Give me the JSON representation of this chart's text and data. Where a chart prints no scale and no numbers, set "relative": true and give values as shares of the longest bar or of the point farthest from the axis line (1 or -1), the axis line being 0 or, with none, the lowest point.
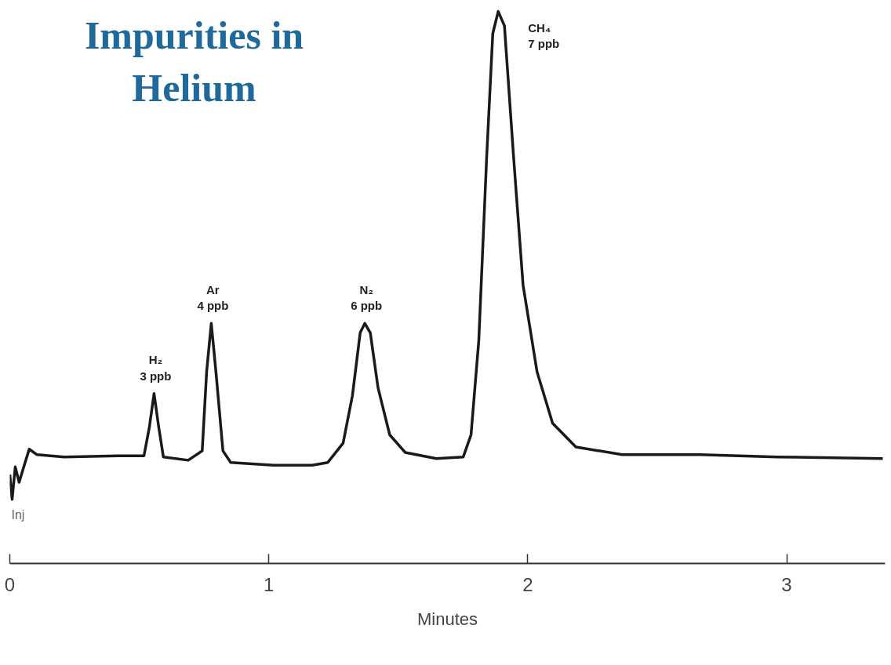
{
  "chart_data": {
    "type": "line",
    "title": "Impurities in Helium",
    "xlabel": "Minutes",
    "relative": true,
    "xlim": [
      0,
      3.38
    ],
    "xticks": [
      0,
      1,
      2,
      3
    ],
    "series": [
      {
        "color": "#1a1a1a",
        "x": [
          0.0,
          0.009,
          0.021,
          0.036,
          0.054,
          0.075,
          0.105,
          0.21,
          0.419,
          0.518,
          0.539,
          0.557,
          0.575,
          0.593,
          0.689,
          0.743,
          0.76,
          0.778,
          0.796,
          0.823,
          0.853,
          1.018,
          1.168,
          1.228,
          1.287,
          1.323,
          1.353,
          1.371,
          1.392,
          1.422,
          1.467,
          1.527,
          1.647,
          1.751,
          1.781,
          1.811,
          1.841,
          1.865,
          1.886,
          1.91,
          1.946,
          1.982,
          2.036,
          2.096,
          2.186,
          2.365,
          2.665,
          2.964,
          3.371
        ],
        "values": [
          0.161,
          0.116,
          0.175,
          0.147,
          0.175,
          0.207,
          0.197,
          0.193,
          0.195,
          0.195,
          0.247,
          0.308,
          0.247,
          0.193,
          0.187,
          0.204,
          0.347,
          0.435,
          0.347,
          0.204,
          0.183,
          0.178,
          0.178,
          0.183,
          0.218,
          0.304,
          0.418,
          0.435,
          0.418,
          0.318,
          0.233,
          0.201,
          0.19,
          0.193,
          0.233,
          0.404,
          0.732,
          0.96,
          1.0,
          0.974,
          0.732,
          0.504,
          0.347,
          0.254,
          0.211,
          0.197,
          0.197,
          0.193,
          0.19
        ]
      }
    ],
    "annotations": [
      {
        "text": "H₂\n3 ppb",
        "x": 0.557,
        "y": 0.308
      },
      {
        "text": "Ar\n4 ppb",
        "x": 0.778,
        "y": 0.435
      },
      {
        "text": "N₂\n6 ppb",
        "x": 1.371,
        "y": 0.435
      },
      {
        "text": "CH₄\n7 ppb",
        "x": 1.886,
        "y": 1.0
      },
      {
        "text": "Inj",
        "x": 0.0,
        "y": 0.116
      }
    ]
  }
}
